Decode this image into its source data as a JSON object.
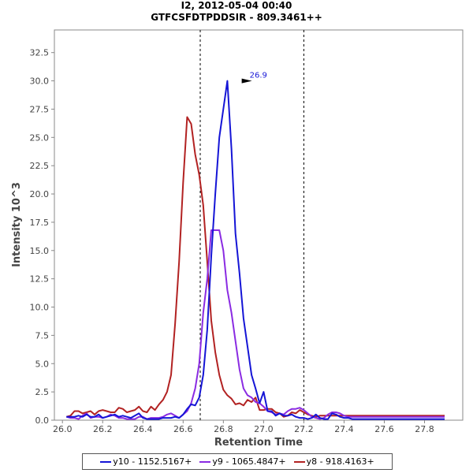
{
  "chart_data": {
    "type": "line",
    "title": "I2, 2012-05-04 00:40",
    "subtitle": "GTFCSFDTPDDSIR - 809.3461++",
    "xlabel": "Retention Time",
    "ylabel": "Intensity 10^3",
    "xlim": [
      25.96,
      27.99
    ],
    "ylim": [
      0,
      34.5
    ],
    "x_ticks": [
      "26.0",
      "26.2",
      "26.4",
      "26.6",
      "26.8",
      "27.0",
      "27.2",
      "27.4",
      "27.6",
      "27.8"
    ],
    "y_ticks": [
      "0.0",
      "2.5",
      "5.0",
      "7.5",
      "10.0",
      "12.5",
      "15.0",
      "17.5",
      "20.0",
      "22.5",
      "25.0",
      "27.5",
      "30.0",
      "32.5"
    ],
    "integration_bounds": [
      26.685,
      27.2
    ],
    "peak_annotation": {
      "x": 26.95,
      "y": 30.0,
      "label": "26.9"
    },
    "x": [
      26.02,
      26.04,
      26.06,
      26.08,
      26.1,
      26.12,
      26.14,
      26.16,
      26.18,
      26.2,
      26.22,
      26.24,
      26.26,
      26.28,
      26.3,
      26.32,
      26.34,
      26.36,
      26.38,
      26.4,
      26.42,
      26.44,
      26.46,
      26.48,
      26.5,
      26.52,
      26.54,
      26.56,
      26.58,
      26.6,
      26.62,
      26.64,
      26.66,
      26.68,
      26.7,
      26.72,
      26.74,
      26.76,
      26.78,
      26.8,
      26.82,
      26.84,
      26.86,
      26.88,
      26.9,
      26.92,
      26.94,
      26.96,
      26.98,
      27.0,
      27.02,
      27.04,
      27.06,
      27.08,
      27.1,
      27.12,
      27.14,
      27.16,
      27.18,
      27.2,
      27.22,
      27.24,
      27.26,
      27.28,
      27.3,
      27.32,
      27.34,
      27.36,
      27.38,
      27.4,
      27.42,
      27.44,
      27.46,
      27.48,
      27.5,
      27.52,
      27.54,
      27.56,
      27.58,
      27.6,
      27.62,
      27.64,
      27.66,
      27.68,
      27.7,
      27.72,
      27.74,
      27.76,
      27.78,
      27.8,
      27.82,
      27.84,
      27.86,
      27.88,
      27.9
    ],
    "series": [
      {
        "name": "y10 - 1152.5167+",
        "color": "#1515d6",
        "values": [
          0.3,
          0.3,
          0.3,
          0.4,
          0.3,
          0.5,
          0.3,
          0.3,
          0.5,
          0.2,
          0.3,
          0.4,
          0.5,
          0.3,
          0.4,
          0.3,
          0.2,
          0.4,
          0.6,
          0.2,
          0.1,
          0.1,
          0.1,
          0.1,
          0.2,
          0.2,
          0.2,
          0.3,
          0.2,
          0.5,
          1.0,
          1.4,
          1.3,
          2.0,
          4.0,
          8.0,
          14.5,
          20.0,
          25.0,
          27.5,
          30.0,
          24.0,
          16.5,
          13.0,
          9.0,
          6.5,
          4.0,
          2.8,
          1.5,
          2.5,
          0.8,
          0.8,
          0.4,
          0.6,
          0.4,
          0.4,
          0.5,
          0.3,
          0.2,
          0.2,
          0.1,
          0.2,
          0.5,
          0.2,
          0.1,
          0.1,
          0.6,
          0.5,
          0.3,
          0.2,
          0.2,
          0.1,
          0.1,
          0.1,
          0.1,
          0.1,
          0.1,
          0.1,
          0.1,
          0.1,
          0.1,
          0.1,
          0.1,
          0.1,
          0.1,
          0.1,
          0.1,
          0.1,
          0.1,
          0.1,
          0.1,
          0.1,
          0.1,
          0.1,
          0.1
        ]
      },
      {
        "name": "y9 - 1065.4847+",
        "color": "#8a2be2",
        "values": [
          0.3,
          0.2,
          0.2,
          0.1,
          0.4,
          0.6,
          0.2,
          0.3,
          0.3,
          0.2,
          0.3,
          0.5,
          0.4,
          0.2,
          0.2,
          0.1,
          0.1,
          0.1,
          0.3,
          0.3,
          0.1,
          0.2,
          0.2,
          0.2,
          0.3,
          0.5,
          0.6,
          0.4,
          0.2,
          0.5,
          0.8,
          1.5,
          2.8,
          5.0,
          9.5,
          12.5,
          16.8,
          16.8,
          16.8,
          15.0,
          11.5,
          9.5,
          7.0,
          4.5,
          2.8,
          2.2,
          2.0,
          1.6,
          1.5,
          1.2,
          0.8,
          0.7,
          0.5,
          0.6,
          0.5,
          0.8,
          1.0,
          1.0,
          1.1,
          0.9,
          0.6,
          0.3,
          0.2,
          0.1,
          0.2,
          0.5,
          0.7,
          0.7,
          0.6,
          0.4,
          0.3,
          0.3,
          0.3,
          0.3,
          0.3,
          0.3,
          0.3,
          0.3,
          0.3,
          0.3,
          0.3,
          0.3,
          0.3,
          0.3,
          0.3,
          0.3,
          0.3,
          0.3,
          0.3,
          0.3,
          0.3,
          0.3,
          0.3,
          0.3,
          0.3
        ]
      },
      {
        "name": "y8 - 918.4163+",
        "color": "#b22222",
        "values": [
          0.3,
          0.4,
          0.8,
          0.8,
          0.6,
          0.7,
          0.8,
          0.5,
          0.8,
          0.9,
          0.8,
          0.7,
          0.7,
          1.1,
          1.0,
          0.7,
          0.8,
          0.9,
          1.2,
          0.8,
          0.7,
          1.2,
          0.9,
          1.4,
          1.8,
          2.5,
          4.0,
          8.5,
          14.0,
          21.0,
          26.8,
          26.2,
          23.5,
          21.7,
          19.0,
          14.0,
          8.8,
          6.0,
          4.0,
          2.7,
          2.2,
          1.9,
          1.4,
          1.5,
          1.3,
          1.8,
          1.6,
          2.0,
          0.9,
          0.9,
          1.0,
          1.0,
          0.7,
          0.6,
          0.3,
          0.4,
          0.7,
          0.6,
          0.9,
          0.7,
          0.5,
          0.4,
          0.3,
          0.4,
          0.4,
          0.4,
          0.4,
          0.4,
          0.4,
          0.4,
          0.4,
          0.4,
          0.4,
          0.4,
          0.4,
          0.4,
          0.4,
          0.4,
          0.4,
          0.4,
          0.4,
          0.4,
          0.4,
          0.4,
          0.4,
          0.4,
          0.4,
          0.4,
          0.4,
          0.4,
          0.4,
          0.4,
          0.4,
          0.4,
          0.4
        ]
      }
    ]
  }
}
